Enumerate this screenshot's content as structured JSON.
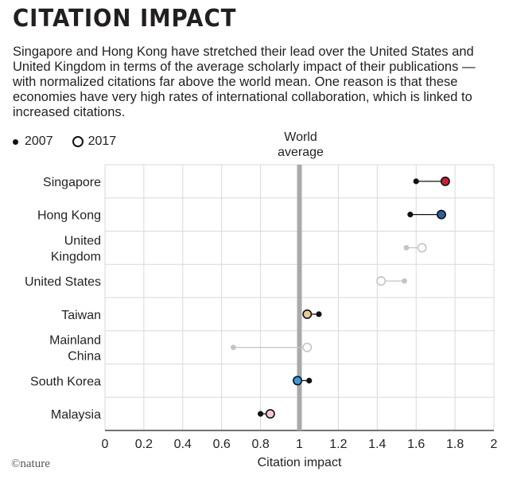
{
  "header": {
    "title": "CITATION IMPACT",
    "subtitle": "Singapore and Hong Kong have stretched their lead over the United States and United Kingdom in terms of the average scholarly impact of their publications — with normalized citations far above the world mean. One reason is that these economies have very high rates of international collaboration, which is linked to increased citations."
  },
  "legend": {
    "series_2007": "2007",
    "series_2017": "2017"
  },
  "reference_label": "World average",
  "credit": "©nature",
  "chart_data": {
    "type": "scatter",
    "title": "CITATION IMPACT",
    "xlabel": "Citation impact",
    "ylabel": "",
    "xlim": [
      0,
      2
    ],
    "xticks": [
      0,
      0.2,
      0.4,
      0.6,
      0.8,
      1,
      1.2,
      1.4,
      1.6,
      1.8,
      2
    ],
    "reference_line": {
      "x": 1,
      "label": "World average"
    },
    "grid": true,
    "legend_position": "top-left",
    "categories": [
      {
        "label": [
          "Singapore"
        ],
        "v2007": 1.6,
        "v2017": 1.75,
        "color": "#c8202f",
        "emphasis": true
      },
      {
        "label": [
          "Hong Kong"
        ],
        "v2007": 1.57,
        "v2017": 1.73,
        "color": "#2f5e9e",
        "emphasis": true
      },
      {
        "label": [
          "United",
          "Kingdom"
        ],
        "v2007": 1.55,
        "v2017": 1.63,
        "color": "#ffffff",
        "emphasis": false
      },
      {
        "label": [
          "United States"
        ],
        "v2007": 1.54,
        "v2017": 1.42,
        "color": "#ffffff",
        "emphasis": false
      },
      {
        "label": [
          "Taiwan"
        ],
        "v2007": 1.1,
        "v2017": 1.04,
        "color": "#e8c99a",
        "emphasis": true
      },
      {
        "label": [
          "Mainland",
          "China"
        ],
        "v2007": 0.66,
        "v2017": 1.04,
        "color": "#ffffff",
        "emphasis": false
      },
      {
        "label": [
          "South Korea"
        ],
        "v2007": 1.05,
        "v2017": 0.99,
        "color": "#3a9ad9",
        "emphasis": true
      },
      {
        "label": [
          "Malaysia"
        ],
        "v2007": 0.8,
        "v2017": 0.85,
        "color": "#f4c9d0",
        "emphasis": true
      }
    ],
    "series": [
      {
        "name": "2007",
        "values": [
          1.6,
          1.57,
          1.55,
          1.54,
          1.1,
          0.66,
          1.05,
          0.8
        ]
      },
      {
        "name": "2017",
        "values": [
          1.75,
          1.73,
          1.63,
          1.42,
          1.04,
          1.04,
          0.99,
          0.85
        ]
      }
    ]
  }
}
